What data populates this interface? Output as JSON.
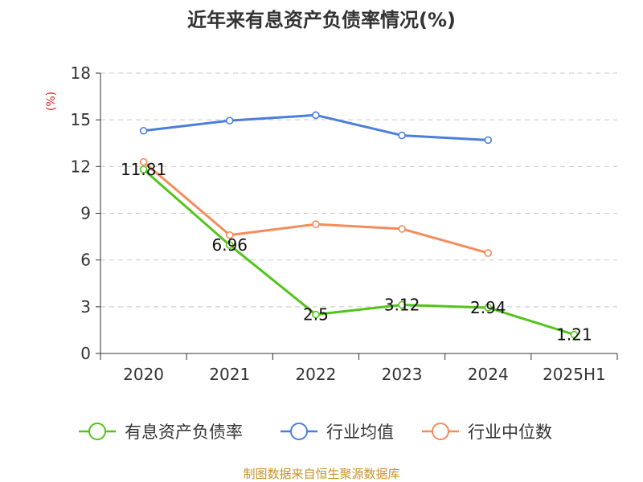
{
  "chart_data": {
    "type": "line",
    "title": "近年来有息资产负债率情况(%)",
    "ylabel": "(%)",
    "xlabel": "",
    "ylim": [
      0,
      18
    ],
    "yticks": [
      "0",
      "3",
      "6",
      "9",
      "12",
      "15",
      "18"
    ],
    "grid": true,
    "legend_position": "bottom",
    "categories": [
      "2020",
      "2021",
      "2022",
      "2023",
      "2024",
      "2025H1"
    ],
    "series": [
      {
        "name": "有息资产负债率",
        "color": "#52c41a",
        "values": [
          11.81,
          6.96,
          2.5,
          3.12,
          2.94,
          1.21
        ],
        "labels": [
          "11.81",
          "6.96",
          "2.5",
          "3.12",
          "2.94",
          "1.21"
        ]
      },
      {
        "name": "行业均值",
        "color": "#4a7fd9",
        "values": [
          14.3,
          14.95,
          15.3,
          14.0,
          13.7,
          null
        ]
      },
      {
        "name": "行业中位数",
        "color": "#f58b5a",
        "values": [
          12.3,
          7.6,
          8.3,
          8.0,
          6.45,
          null
        ]
      }
    ],
    "source": "制图数据来自恒生聚源数据库"
  }
}
